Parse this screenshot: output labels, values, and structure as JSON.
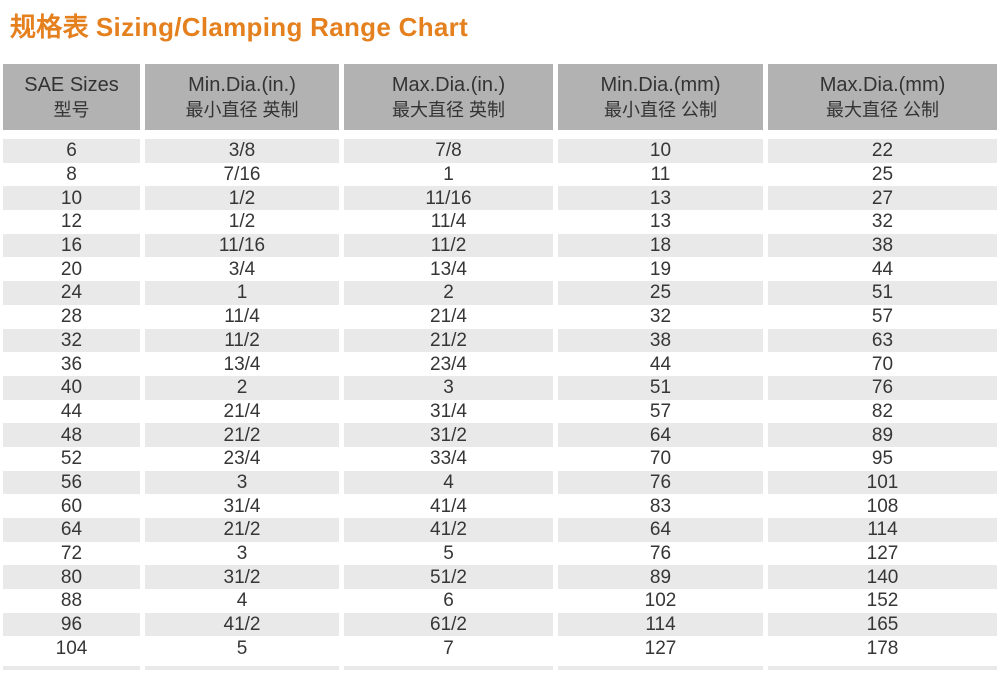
{
  "title": {
    "zh": "规格表",
    "en": "Sizing/Clamping Range Chart"
  },
  "colors": {
    "title_orange": "#e5801f",
    "header_bg": "#b2b2b2",
    "row_alt_bg": "#e9e9e9",
    "row_bg": "#ffffff",
    "text": "#363636"
  },
  "chart_data": {
    "type": "table",
    "title": "规格表 Sizing/Clamping Range Chart",
    "grid": "off",
    "legend_position": "none",
    "columns": [
      {
        "en": "SAE Sizes",
        "zh": "型号"
      },
      {
        "en": "Min.Dia.(in.)",
        "zh": "最小直径 英制"
      },
      {
        "en": "Max.Dia.(in.)",
        "zh": "最大直径 英制"
      },
      {
        "en": "Min.Dia.(mm)",
        "zh": "最小直径 公制"
      },
      {
        "en": "Max.Dia.(mm)",
        "zh": "最大直径 公制"
      }
    ],
    "rows": [
      [
        "6",
        "3/8",
        "7/8",
        "10",
        "22"
      ],
      [
        "8",
        "7/16",
        "1",
        "11",
        "25"
      ],
      [
        "10",
        "1/2",
        "11/16",
        "13",
        "27"
      ],
      [
        "12",
        "1/2",
        "11/4",
        "13",
        "32"
      ],
      [
        "16",
        "11/16",
        "11/2",
        "18",
        "38"
      ],
      [
        "20",
        "3/4",
        "13/4",
        "19",
        "44"
      ],
      [
        "24",
        "1",
        "2",
        "25",
        "51"
      ],
      [
        "28",
        "11/4",
        "21/4",
        "32",
        "57"
      ],
      [
        "32",
        "11/2",
        "21/2",
        "38",
        "63"
      ],
      [
        "36",
        "13/4",
        "23/4",
        "44",
        "70"
      ],
      [
        "40",
        "2",
        "3",
        "51",
        "76"
      ],
      [
        "44",
        "21/4",
        "31/4",
        "57",
        "82"
      ],
      [
        "48",
        "21/2",
        "31/2",
        "64",
        "89"
      ],
      [
        "52",
        "23/4",
        "33/4",
        "70",
        "95"
      ],
      [
        "56",
        "3",
        "4",
        "76",
        "101"
      ],
      [
        "60",
        "31/4",
        "41/4",
        "83",
        "108"
      ],
      [
        "64",
        "21/2",
        "41/2",
        "64",
        "114"
      ],
      [
        "72",
        "3",
        "5",
        "76",
        "127"
      ],
      [
        "80",
        "31/2",
        "51/2",
        "89",
        "140"
      ],
      [
        "88",
        "4",
        "6",
        "102",
        "152"
      ],
      [
        "96",
        "41/2",
        "61/2",
        "114",
        "165"
      ],
      [
        "104",
        "5",
        "7",
        "127",
        "178"
      ]
    ]
  }
}
